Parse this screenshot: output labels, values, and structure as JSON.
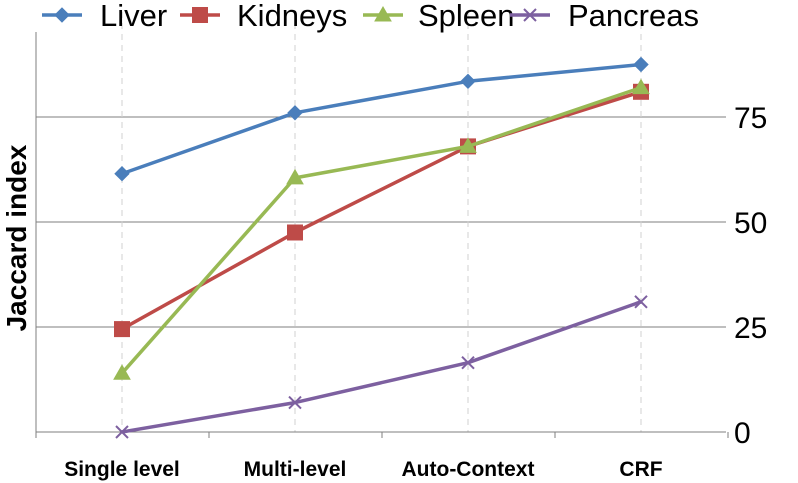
{
  "chart_data": {
    "type": "line",
    "title": "",
    "xlabel": "",
    "ylabel": "Jaccard index",
    "categories": [
      "Single level",
      "Multi-level",
      "Auto-Context",
      "CRF"
    ],
    "ylim": [
      0,
      100
    ],
    "yticks": [
      0,
      25,
      50,
      75
    ],
    "ytick_labels": [
      "0",
      "25",
      "50",
      "75"
    ],
    "y_axis_side": "right",
    "grid": "horizontal",
    "legend_position": "top",
    "series": [
      {
        "name": "Liver",
        "values": [
          61.5,
          76,
          83.5,
          87.5
        ],
        "color": "#4A7EBB",
        "marker": "diamond"
      },
      {
        "name": "Kidneys",
        "values": [
          24.5,
          47.5,
          68,
          81
        ],
        "color": "#BE4B48",
        "marker": "square"
      },
      {
        "name": "Spleen",
        "values": [
          14,
          60.5,
          68,
          82
        ],
        "color": "#98B954",
        "marker": "triangle"
      },
      {
        "name": "Pancreas",
        "values": [
          0,
          7,
          16.5,
          31
        ],
        "color": "#7D60A0",
        "marker": "x"
      }
    ]
  }
}
